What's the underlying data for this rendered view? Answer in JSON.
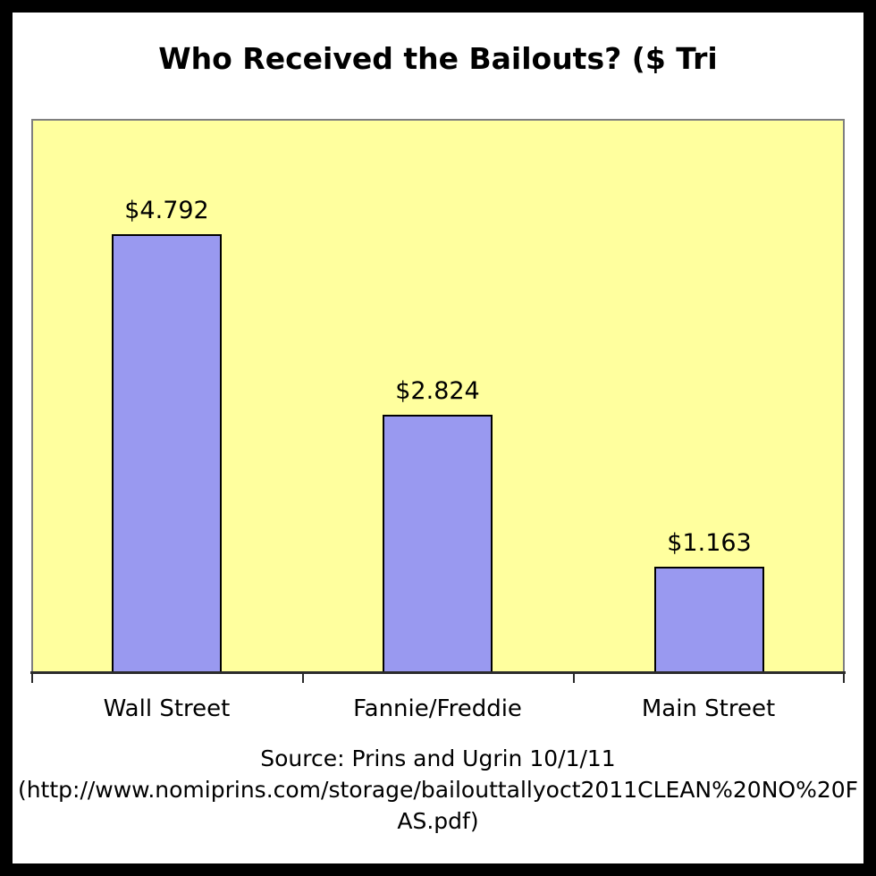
{
  "chart_data": {
    "type": "bar",
    "title": "Who Received the Bailouts? ($ Tri",
    "categories": [
      "Wall Street",
      "Fannie/Freddie",
      "Main Street"
    ],
    "values": [
      4.792,
      2.824,
      1.163
    ],
    "value_labels": [
      "$4.792",
      "$2.824",
      "$1.163"
    ],
    "ylim": [
      0,
      6.05
    ],
    "grid": false,
    "legend": false,
    "xlabel": "",
    "ylabel": "",
    "colors": {
      "plot_background": "#FFFF9E",
      "bar_fill": "#9999F0",
      "bar_border": "#000000",
      "plot_border": "#7F7F7F",
      "axis": "#2B2B2B",
      "frame": "#000000",
      "page_background": "#FFFFFF",
      "text": "#000000"
    },
    "source_lines": [
      "Source: Prins and Ugrin 10/1/11",
      "(http://www.nomiprins.com/storage/bailouttallyoct2011CLEAN%20NO%20F",
      "AS.pdf)"
    ]
  }
}
